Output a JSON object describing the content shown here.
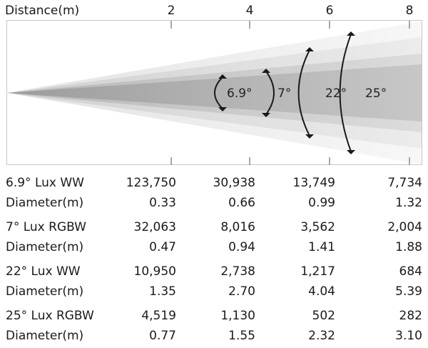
{
  "chart_data": {
    "type": "beam-angle-diagram",
    "xlabel": "Distance(m)",
    "x_ticks": [
      2,
      4,
      6,
      8
    ],
    "beam_angles": [
      "6.9°",
      "7°",
      "22°",
      "25°"
    ],
    "table": {
      "rows": [
        {
          "label": "6.9° Lux WW",
          "values": [
            "123,750",
            "30,938",
            "13,749",
            "7,734"
          ]
        },
        {
          "label": "Diameter(m)",
          "values": [
            "0.33",
            "0.66",
            "0.99",
            "1.32"
          ]
        },
        {
          "label": "7° Lux RGBW",
          "values": [
            "32,063",
            "8,016",
            "3,562",
            "2,004"
          ]
        },
        {
          "label": "Diameter(m)",
          "values": [
            "0.47",
            "0.94",
            "1.41",
            "1.88"
          ]
        },
        {
          "label": "22° Lux WW",
          "values": [
            "10,950",
            "2,738",
            "1,217",
            "684"
          ]
        },
        {
          "label": "Diameter(m)",
          "values": [
            "1.35",
            "2.70",
            "4.04",
            "5.39"
          ]
        },
        {
          "label": "25° Lux RGBW",
          "values": [
            "4,519",
            "1,130",
            "502",
            "282"
          ]
        },
        {
          "label": "Diameter(m)",
          "values": [
            "0.77",
            "1.55",
            "2.32",
            "3.10"
          ]
        }
      ]
    }
  }
}
